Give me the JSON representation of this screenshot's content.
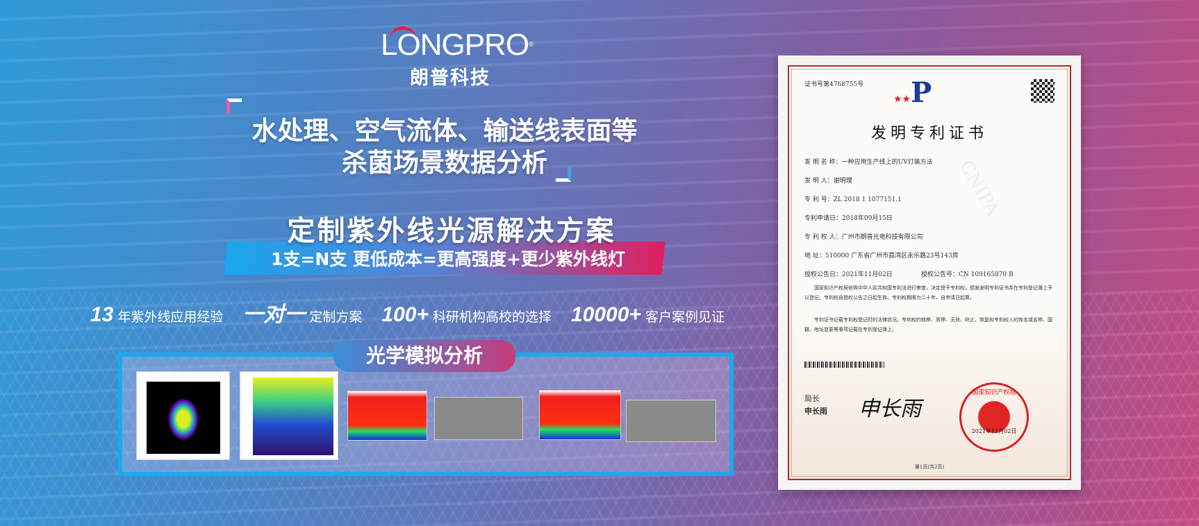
{
  "logo": {
    "en": "LONGPRO",
    "cn": "朗普科技"
  },
  "headline": {
    "line1": "水处理、空气流体、输送线表面等",
    "line2": "杀菌场景数据分析"
  },
  "solution": {
    "title": "定制紫外线光源解决方案",
    "subtitle": "1支=N支  更低成本=更高强度+更少紫外线灯"
  },
  "stats": [
    {
      "value": "13",
      "label": "年紫外线应用经验"
    },
    {
      "value": "一对一",
      "label": "定制方案"
    },
    {
      "value": "100+",
      "label": "科研机构高校的选择"
    },
    {
      "value": "10000+",
      "label": "客户案例见证"
    }
  ],
  "optics": {
    "title": "光学模拟分析"
  },
  "certificate": {
    "cert_no": "证书号第4768755号",
    "title": "发明专利证书",
    "fields": [
      "发 明 名 称：一种应用生产线上的UV灯装方法",
      "发  明  人：谢明理",
      "专  利  号：ZL 2018 1 1077151.1",
      "专利申请日：2018年09月15日",
      "专 利 权 人：广州市朗普光电科技有限公司",
      "地      址：510000 广东省广州市荔湾区永乐路23号143房"
    ],
    "grant_date": "授权公告日：2021年11月02日",
    "grant_no": "授权公告号：CN 109165870 B",
    "body1": "国家知识产权局依照中华人民共和国专利法进行审查，决定授予专利权，颁发发明专利证书并在专利登记簿上予以登记。专利权自授权公告之日起生效。专利权期限为二十年，自申请日起算。",
    "body2": "专利证书记载专利权登记时的法律状况。专利权的转移、质押、无效、终止、恢复和专利权人的姓名或名称、国籍、地址变更等事项记载在专利登记簿上。",
    "signer_title": "局长",
    "signer_name": "申长雨",
    "signature": "申长雨",
    "seal_text": "国家知识产权局",
    "seal_date": "2021年11月02日",
    "page": "第1页(共2页)",
    "watermark": "CNIPA"
  },
  "colors": {
    "blue": "#1ba9ec",
    "pink": "#e0205f"
  }
}
